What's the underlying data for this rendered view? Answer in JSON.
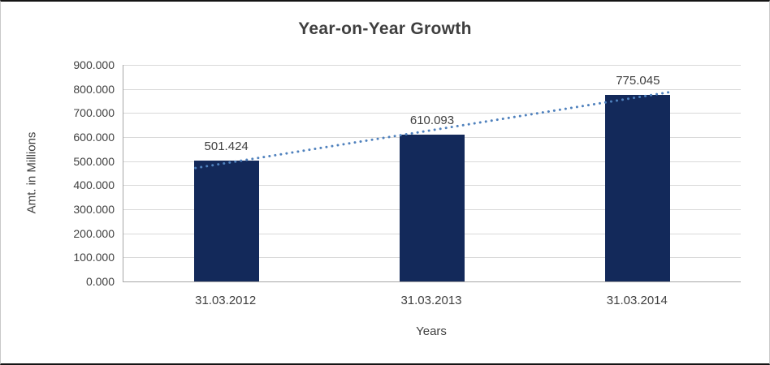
{
  "chart_data": {
    "type": "bar",
    "title": "Year-on-Year Growth",
    "xlabel": "Years",
    "ylabel": "Amt. in Millions",
    "categories": [
      "31.03.2012",
      "31.03.2013",
      "31.03.2014"
    ],
    "values": [
      501.424,
      610.093,
      775.045
    ],
    "data_labels": [
      "501.424",
      "610.093",
      "775.045"
    ],
    "ylim": [
      0,
      900
    ],
    "y_tick_step": 100,
    "y_tick_labels": [
      "0.000",
      "100.000",
      "200.000",
      "300.000",
      "400.000",
      "500.000",
      "600.000",
      "700.000",
      "800.000",
      "900.000"
    ],
    "grid": true,
    "legend": false,
    "trendline": {
      "type": "linear",
      "style": "dotted"
    },
    "colors": {
      "bar": "#13295a",
      "trendline": "#4f81bd",
      "gridline": "#d9d9d9",
      "axis_line": "#a6a6a6",
      "text": "#404040",
      "title": "#3f3f3f"
    }
  }
}
